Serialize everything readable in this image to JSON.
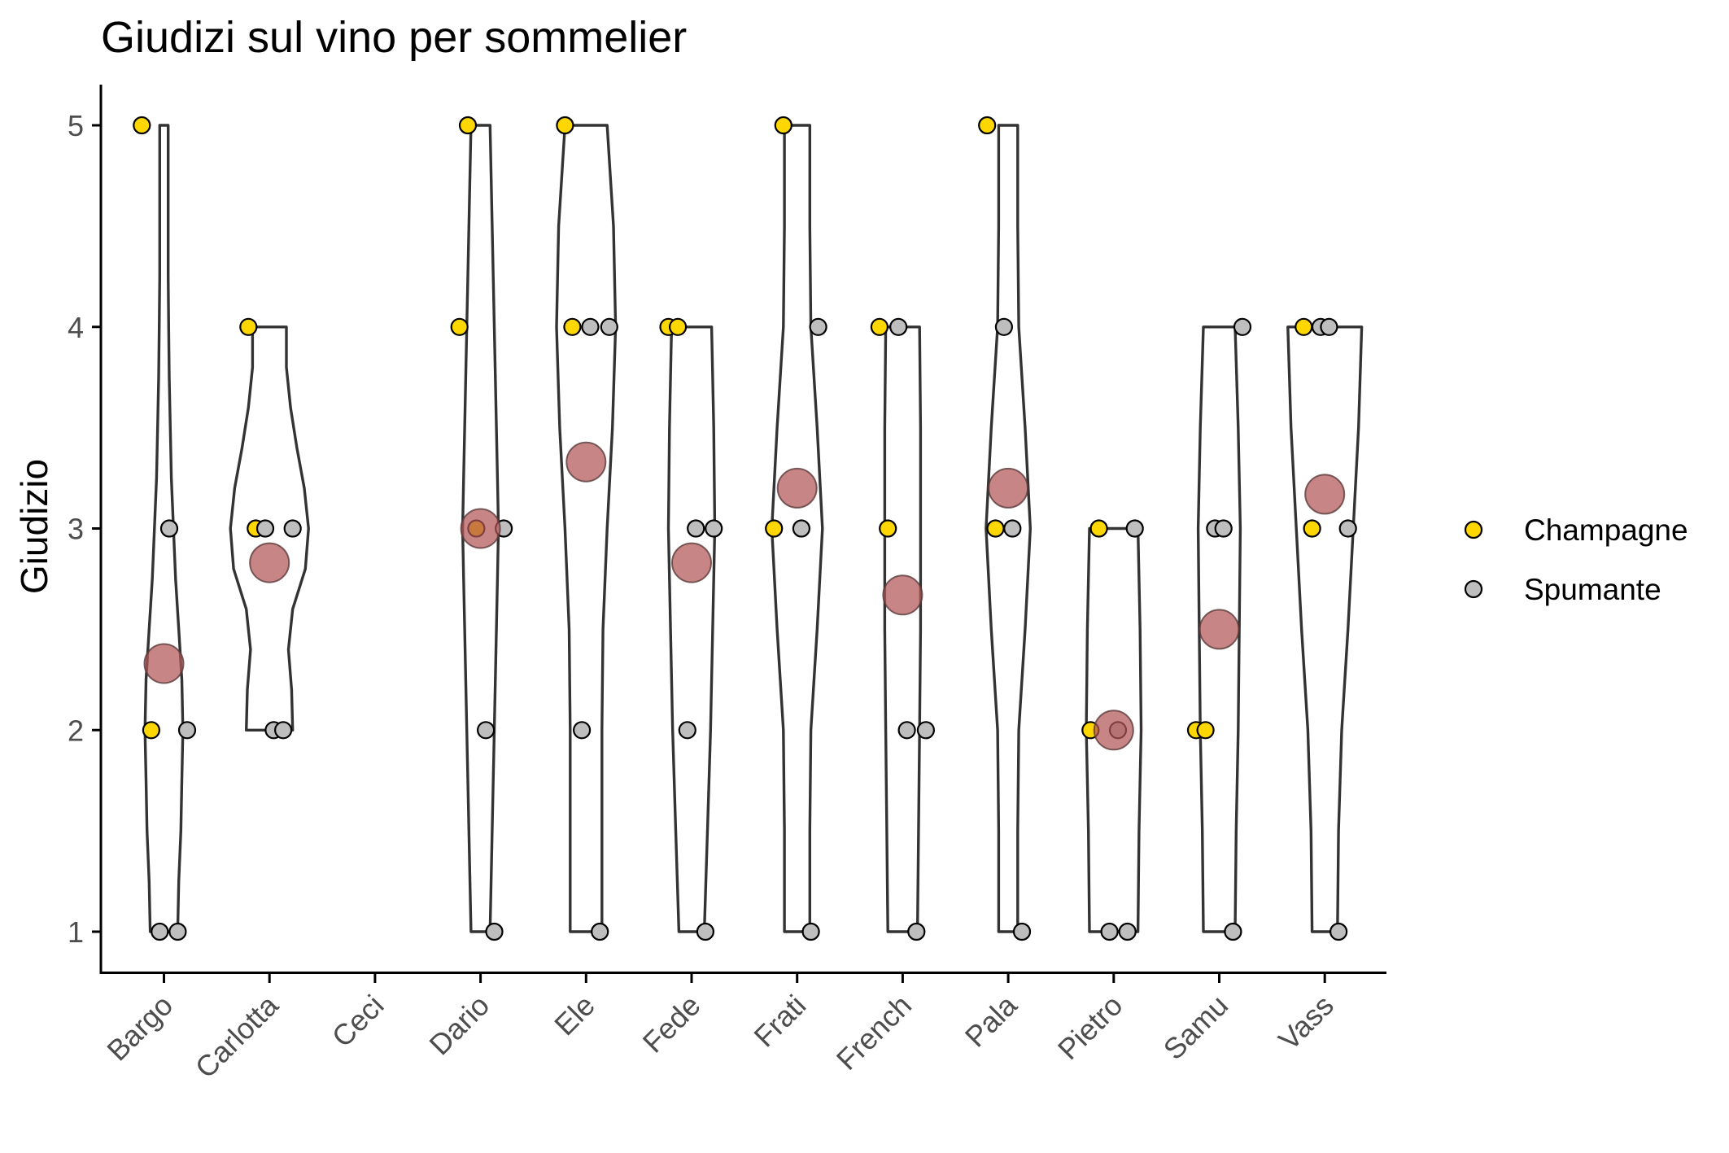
{
  "chart_data": {
    "type": "scatter",
    "title": "Giudizi sul vino per sommelier",
    "xlabel": "",
    "ylabel": "Giudizio",
    "ylim": [
      0.8,
      5.2
    ],
    "yticks": [
      1,
      2,
      3,
      4,
      5
    ],
    "categories": [
      "Bargo",
      "Carlotta",
      "Ceci",
      "Dario",
      "Ele",
      "Fede",
      "Frati",
      "French",
      "Pala",
      "Pietro",
      "Samu",
      "Vass"
    ],
    "legend": {
      "position": "right",
      "title": ""
    },
    "colors": {
      "Champagne": "#FFD700",
      "Spumante": "#BEBEBE",
      "mean": "#B35656"
    },
    "grid": false,
    "series": [
      {
        "name": "Champagne",
        "points": [
          {
            "x": "Bargo",
            "y": 5,
            "jitter": -0.21
          },
          {
            "x": "Bargo",
            "y": 2,
            "jitter": -0.12
          },
          {
            "x": "Carlotta",
            "y": 4,
            "jitter": -0.2
          },
          {
            "x": "Carlotta",
            "y": 3,
            "jitter": -0.13
          },
          {
            "x": "Dario",
            "y": 5,
            "jitter": -0.12
          },
          {
            "x": "Dario",
            "y": 4,
            "jitter": -0.2
          },
          {
            "x": "Dario",
            "y": 3,
            "jitter": -0.04
          },
          {
            "x": "Ele",
            "y": 5,
            "jitter": -0.2
          },
          {
            "x": "Ele",
            "y": 4,
            "jitter": -0.13
          },
          {
            "x": "Fede",
            "y": 4,
            "jitter": -0.22
          },
          {
            "x": "Fede",
            "y": 4,
            "jitter": -0.13
          },
          {
            "x": "Frati",
            "y": 5,
            "jitter": -0.13
          },
          {
            "x": "Frati",
            "y": 3,
            "jitter": -0.22
          },
          {
            "x": "French",
            "y": 4,
            "jitter": -0.22
          },
          {
            "x": "French",
            "y": 3,
            "jitter": -0.14
          },
          {
            "x": "Pala",
            "y": 5,
            "jitter": -0.2
          },
          {
            "x": "Pala",
            "y": 3,
            "jitter": -0.12
          },
          {
            "x": "Pietro",
            "y": 3,
            "jitter": -0.14
          },
          {
            "x": "Pietro",
            "y": 2,
            "jitter": -0.22
          },
          {
            "x": "Samu",
            "y": 2,
            "jitter": -0.22
          },
          {
            "x": "Samu",
            "y": 2,
            "jitter": -0.13
          },
          {
            "x": "Vass",
            "y": 4,
            "jitter": -0.2
          },
          {
            "x": "Vass",
            "y": 3,
            "jitter": -0.12
          }
        ]
      },
      {
        "name": "Spumante",
        "points": [
          {
            "x": "Bargo",
            "y": 3,
            "jitter": 0.05
          },
          {
            "x": "Bargo",
            "y": 2,
            "jitter": 0.22
          },
          {
            "x": "Bargo",
            "y": 1,
            "jitter": -0.04
          },
          {
            "x": "Bargo",
            "y": 1,
            "jitter": 0.13
          },
          {
            "x": "Carlotta",
            "y": 3,
            "jitter": -0.04
          },
          {
            "x": "Carlotta",
            "y": 3,
            "jitter": 0.22
          },
          {
            "x": "Carlotta",
            "y": 2,
            "jitter": 0.04
          },
          {
            "x": "Carlotta",
            "y": 2,
            "jitter": 0.13
          },
          {
            "x": "Dario",
            "y": 3,
            "jitter": 0.22
          },
          {
            "x": "Dario",
            "y": 2,
            "jitter": 0.05
          },
          {
            "x": "Dario",
            "y": 1,
            "jitter": 0.13
          },
          {
            "x": "Ele",
            "y": 4,
            "jitter": 0.04
          },
          {
            "x": "Ele",
            "y": 4,
            "jitter": 0.22
          },
          {
            "x": "Ele",
            "y": 2,
            "jitter": -0.04
          },
          {
            "x": "Ele",
            "y": 1,
            "jitter": 0.13
          },
          {
            "x": "Fede",
            "y": 3,
            "jitter": 0.04
          },
          {
            "x": "Fede",
            "y": 3,
            "jitter": 0.21
          },
          {
            "x": "Fede",
            "y": 2,
            "jitter": -0.04
          },
          {
            "x": "Fede",
            "y": 1,
            "jitter": 0.13
          },
          {
            "x": "Frati",
            "y": 4,
            "jitter": 0.2
          },
          {
            "x": "Frati",
            "y": 3,
            "jitter": 0.04
          },
          {
            "x": "Frati",
            "y": 1,
            "jitter": 0.13
          },
          {
            "x": "French",
            "y": 4,
            "jitter": -0.04
          },
          {
            "x": "French",
            "y": 2,
            "jitter": 0.04
          },
          {
            "x": "French",
            "y": 2,
            "jitter": 0.22
          },
          {
            "x": "French",
            "y": 1,
            "jitter": 0.13
          },
          {
            "x": "Pala",
            "y": 4,
            "jitter": -0.04
          },
          {
            "x": "Pala",
            "y": 3,
            "jitter": 0.04
          },
          {
            "x": "Pala",
            "y": 1,
            "jitter": 0.13
          },
          {
            "x": "Pietro",
            "y": 3,
            "jitter": 0.2
          },
          {
            "x": "Pietro",
            "y": 2,
            "jitter": 0.04
          },
          {
            "x": "Pietro",
            "y": 1,
            "jitter": -0.04
          },
          {
            "x": "Pietro",
            "y": 1,
            "jitter": 0.13
          },
          {
            "x": "Samu",
            "y": 4,
            "jitter": 0.22
          },
          {
            "x": "Samu",
            "y": 3,
            "jitter": -0.04
          },
          {
            "x": "Samu",
            "y": 3,
            "jitter": 0.04
          },
          {
            "x": "Samu",
            "y": 1,
            "jitter": 0.13
          },
          {
            "x": "Vass",
            "y": 4,
            "jitter": -0.04
          },
          {
            "x": "Vass",
            "y": 4,
            "jitter": 0.04
          },
          {
            "x": "Vass",
            "y": 3,
            "jitter": 0.22
          },
          {
            "x": "Vass",
            "y": 1,
            "jitter": 0.13
          }
        ]
      }
    ],
    "means": [
      {
        "x": "Bargo",
        "y": 2.33
      },
      {
        "x": "Carlotta",
        "y": 2.83
      },
      {
        "x": "Dario",
        "y": 3.0
      },
      {
        "x": "Ele",
        "y": 3.33
      },
      {
        "x": "Fede",
        "y": 2.83
      },
      {
        "x": "Frati",
        "y": 3.2
      },
      {
        "x": "French",
        "y": 2.67
      },
      {
        "x": "Pala",
        "y": 3.2
      },
      {
        "x": "Pietro",
        "y": 2.0
      },
      {
        "x": "Samu",
        "y": 2.5
      },
      {
        "x": "Vass",
        "y": 3.17
      }
    ],
    "violins": [
      {
        "x": "Bargo",
        "profile": [
          [
            1.0,
            0.13
          ],
          [
            1.25,
            0.14
          ],
          [
            1.5,
            0.16
          ],
          [
            1.75,
            0.17
          ],
          [
            2.0,
            0.18
          ],
          [
            2.25,
            0.17
          ],
          [
            2.5,
            0.14
          ],
          [
            2.75,
            0.11
          ],
          [
            3.0,
            0.09
          ],
          [
            3.25,
            0.07
          ],
          [
            3.5,
            0.06
          ],
          [
            3.75,
            0.05
          ],
          [
            4.0,
            0.045
          ],
          [
            4.25,
            0.04
          ],
          [
            4.5,
            0.04
          ],
          [
            4.75,
            0.04
          ],
          [
            5.0,
            0.04
          ]
        ]
      },
      {
        "x": "Carlotta",
        "profile": [
          [
            2.0,
            0.22
          ],
          [
            2.2,
            0.21
          ],
          [
            2.4,
            0.18
          ],
          [
            2.6,
            0.22
          ],
          [
            2.8,
            0.34
          ],
          [
            3.0,
            0.37
          ],
          [
            3.2,
            0.33
          ],
          [
            3.4,
            0.26
          ],
          [
            3.6,
            0.2
          ],
          [
            3.8,
            0.16
          ],
          [
            4.0,
            0.16
          ]
        ]
      },
      {
        "x": "Dario",
        "profile": [
          [
            1.0,
            0.09
          ],
          [
            1.25,
            0.1
          ],
          [
            1.5,
            0.11
          ],
          [
            1.75,
            0.12
          ],
          [
            2.0,
            0.13
          ],
          [
            2.25,
            0.14
          ],
          [
            2.5,
            0.15
          ],
          [
            2.75,
            0.16
          ],
          [
            3.0,
            0.17
          ],
          [
            3.25,
            0.16
          ],
          [
            3.5,
            0.15
          ],
          [
            3.75,
            0.14
          ],
          [
            4.0,
            0.13
          ],
          [
            4.25,
            0.12
          ],
          [
            4.5,
            0.11
          ],
          [
            4.75,
            0.1
          ],
          [
            5.0,
            0.09
          ]
        ]
      },
      {
        "x": "Ele",
        "profile": [
          [
            1.0,
            0.15
          ],
          [
            1.5,
            0.15
          ],
          [
            2.0,
            0.15
          ],
          [
            2.5,
            0.16
          ],
          [
            3.0,
            0.2
          ],
          [
            3.5,
            0.25
          ],
          [
            4.0,
            0.28
          ],
          [
            4.5,
            0.26
          ],
          [
            5.0,
            0.2
          ]
        ]
      },
      {
        "x": "Fede",
        "profile": [
          [
            1.0,
            0.12
          ],
          [
            1.5,
            0.15
          ],
          [
            2.0,
            0.18
          ],
          [
            2.5,
            0.2
          ],
          [
            3.0,
            0.22
          ],
          [
            3.5,
            0.21
          ],
          [
            4.0,
            0.19
          ]
        ]
      },
      {
        "x": "Frati",
        "profile": [
          [
            1.0,
            0.12
          ],
          [
            1.5,
            0.12
          ],
          [
            2.0,
            0.13
          ],
          [
            2.5,
            0.19
          ],
          [
            3.0,
            0.24
          ],
          [
            3.5,
            0.19
          ],
          [
            4.0,
            0.13
          ],
          [
            4.5,
            0.12
          ],
          [
            5.0,
            0.12
          ]
        ]
      },
      {
        "x": "French",
        "profile": [
          [
            1.0,
            0.14
          ],
          [
            1.5,
            0.15
          ],
          [
            2.0,
            0.16
          ],
          [
            2.5,
            0.17
          ],
          [
            3.0,
            0.17
          ],
          [
            3.5,
            0.17
          ],
          [
            4.0,
            0.16
          ]
        ]
      },
      {
        "x": "Pala",
        "profile": [
          [
            1.0,
            0.09
          ],
          [
            1.5,
            0.09
          ],
          [
            2.0,
            0.1
          ],
          [
            2.5,
            0.16
          ],
          [
            3.0,
            0.21
          ],
          [
            3.5,
            0.16
          ],
          [
            4.0,
            0.1
          ],
          [
            4.5,
            0.09
          ],
          [
            5.0,
            0.09
          ]
        ]
      },
      {
        "x": "Pietro",
        "profile": [
          [
            1.0,
            0.23
          ],
          [
            1.5,
            0.24
          ],
          [
            2.0,
            0.26
          ],
          [
            2.5,
            0.25
          ],
          [
            3.0,
            0.23
          ]
        ]
      },
      {
        "x": "Samu",
        "profile": [
          [
            1.0,
            0.15
          ],
          [
            1.5,
            0.16
          ],
          [
            2.0,
            0.18
          ],
          [
            2.5,
            0.19
          ],
          [
            3.0,
            0.2
          ],
          [
            3.5,
            0.18
          ],
          [
            4.0,
            0.15
          ]
        ]
      },
      {
        "x": "Vass",
        "profile": [
          [
            1.0,
            0.12
          ],
          [
            1.5,
            0.13
          ],
          [
            2.0,
            0.16
          ],
          [
            2.5,
            0.22
          ],
          [
            3.0,
            0.27
          ],
          [
            3.5,
            0.32
          ],
          [
            4.0,
            0.35
          ]
        ]
      }
    ]
  }
}
